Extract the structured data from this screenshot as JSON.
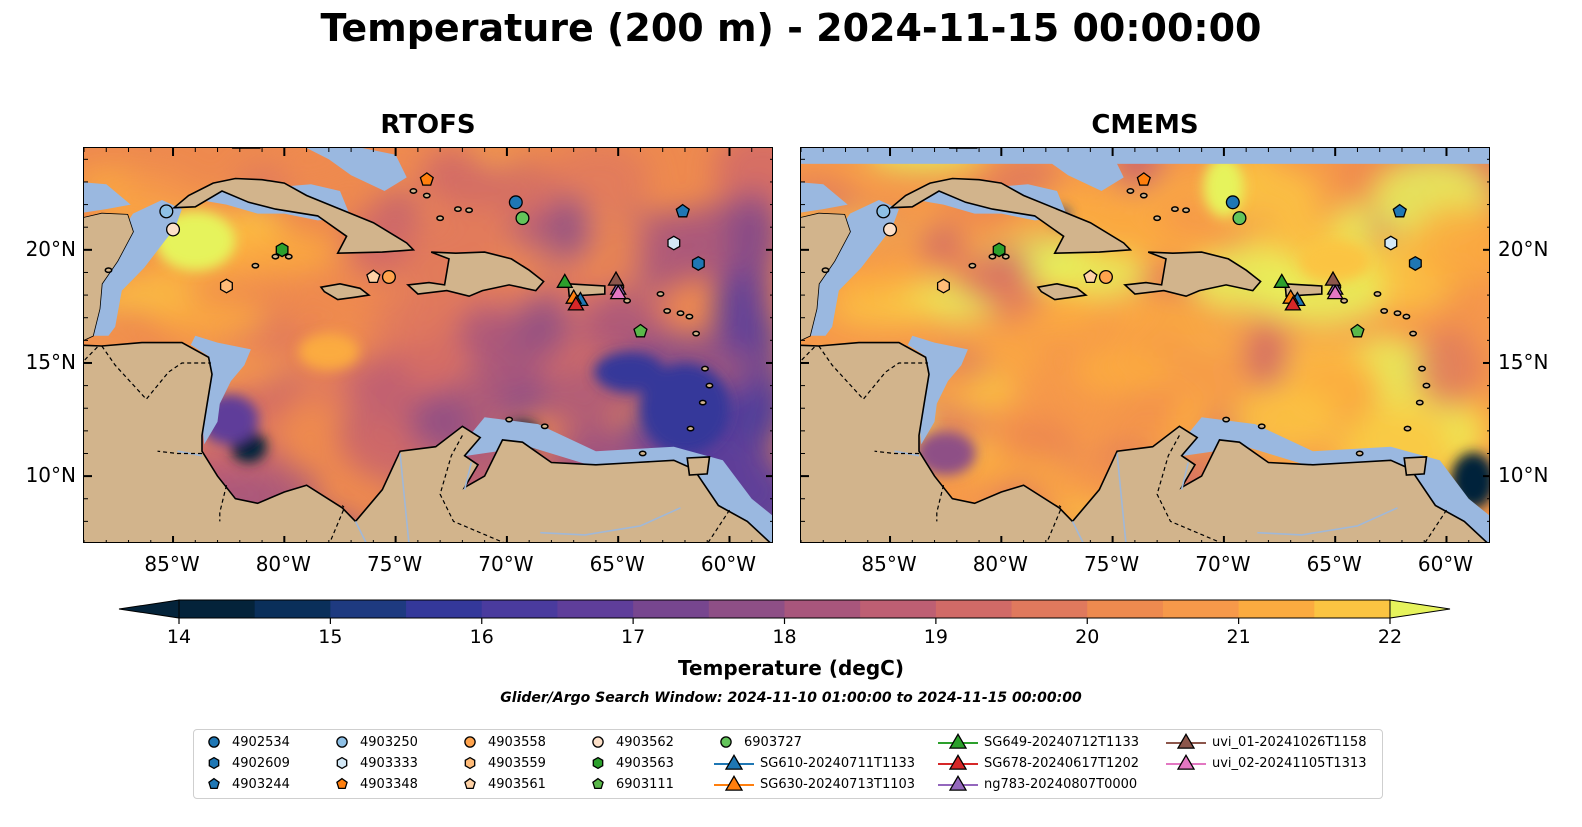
{
  "title": "Temperature (200 m) - 2024-11-15 00:00:00",
  "panels": [
    {
      "name": "RTOFS",
      "variant": "rtofs"
    },
    {
      "name": "CMEMS",
      "variant": "cmems"
    }
  ],
  "map_extent": {
    "lon_min": -89,
    "lon_max": -58,
    "lat_min": 7,
    "lat_max": 24.5
  },
  "lon_ticks": [
    {
      "value": -85,
      "label": "85°W"
    },
    {
      "value": -80,
      "label": "80°W"
    },
    {
      "value": -75,
      "label": "75°W"
    },
    {
      "value": -70,
      "label": "70°W"
    },
    {
      "value": -65,
      "label": "65°W"
    },
    {
      "value": -60,
      "label": "60°W"
    }
  ],
  "lat_ticks": [
    {
      "value": 20,
      "label": "20°N"
    },
    {
      "value": 15,
      "label": "15°N"
    },
    {
      "value": 10,
      "label": "10°N"
    }
  ],
  "colorbar": {
    "label": "Temperature (degC)",
    "min": 14,
    "max": 22,
    "step": 0.5,
    "extend": "both",
    "ticks": [
      14,
      15,
      16,
      17,
      18,
      19,
      20,
      21,
      22
    ],
    "colors": [
      "#04233a",
      "#0a2f5a",
      "#1e3a80",
      "#34389a",
      "#4a3b9e",
      "#5f3e9a",
      "#77468f",
      "#8e4f86",
      "#a8567c",
      "#be5f73",
      "#d16a67",
      "#e0795d",
      "#ee8a4f",
      "#f6994a",
      "#fbab40",
      "#fbc442",
      "#e6f35c"
    ]
  },
  "search_window": "Glider/Argo Search Window: 2024-11-10 01:00:00 to 2024-11-15 00:00:00",
  "map_colors": {
    "land": "#d2b48c",
    "shelf": "#9ab8e0",
    "deep": "#04233a",
    "rivers": "#a0b8d8"
  },
  "legend_items": [
    {
      "label": "4902534",
      "marker": "circle",
      "color": "#1f77b4",
      "lon": -69.6,
      "lat": 22.1
    },
    {
      "label": "4902609",
      "marker": "hexagon",
      "color": "#1f77b4",
      "lon": -61.4,
      "lat": 19.4
    },
    {
      "label": "4903244",
      "marker": "pentagon",
      "color": "#1f77b4",
      "lon": -62.1,
      "lat": 21.7
    },
    {
      "label": "4903250",
      "marker": "circle",
      "color": "#8ec0e6",
      "lon": -85.3,
      "lat": 21.7
    },
    {
      "label": "4903333",
      "marker": "hexagon",
      "color": "#d4e9f7",
      "lon": -62.5,
      "lat": 20.3
    },
    {
      "label": "4903348",
      "marker": "pentagon",
      "color": "#ff7f0e",
      "lon": -73.6,
      "lat": 23.1
    },
    {
      "label": "4903558",
      "marker": "circle",
      "color": "#ffa34d",
      "lon": -75.3,
      "lat": 18.8
    },
    {
      "label": "4903559",
      "marker": "hexagon",
      "color": "#ffbb78",
      "lon": -82.6,
      "lat": 18.4
    },
    {
      "label": "4903561",
      "marker": "pentagon",
      "color": "#ffd2a6",
      "lon": -76.0,
      "lat": 18.8
    },
    {
      "label": "4903562",
      "marker": "circle",
      "color": "#fde0c8",
      "lon": -85.0,
      "lat": 20.9
    },
    {
      "label": "4903563",
      "marker": "hexagon",
      "color": "#2ca02c",
      "lon": -80.1,
      "lat": 20.0
    },
    {
      "label": "6903111",
      "marker": "pentagon",
      "color": "#5ab84a",
      "lon": -64.0,
      "lat": 16.4
    },
    {
      "label": "6903727",
      "marker": "circle",
      "color": "#63c45a",
      "lon": -69.3,
      "lat": 21.4
    },
    {
      "label": "SG610-20240711T1133",
      "marker": "triangle",
      "color": "#1f77b4",
      "lon": -66.7,
      "lat": 17.8
    },
    {
      "label": "SG630-20240713T1103",
      "marker": "triangle",
      "color": "#ff7f0e",
      "lon": -67.0,
      "lat": 17.9
    },
    {
      "label": "SG649-20240712T1133",
      "marker": "triangle",
      "color": "#2ca02c",
      "lon": -67.4,
      "lat": 18.6
    },
    {
      "label": "SG678-20240617T1202",
      "marker": "triangle",
      "color": "#d62728",
      "lon": -66.9,
      "lat": 17.6
    },
    {
      "label": "ng783-20240807T0000",
      "marker": "triangle",
      "color": "#9467bd",
      "lon": -65.0,
      "lat": 18.3
    },
    {
      "label": "uvi_01-20241026T1158",
      "marker": "triangle",
      "color": "#8c564b",
      "lon": -65.1,
      "lat": 18.7
    },
    {
      "label": "uvi_02-20241105T1313",
      "marker": "triangle",
      "color": "#e377c2",
      "lon": -65.0,
      "lat": 18.1
    }
  ]
}
